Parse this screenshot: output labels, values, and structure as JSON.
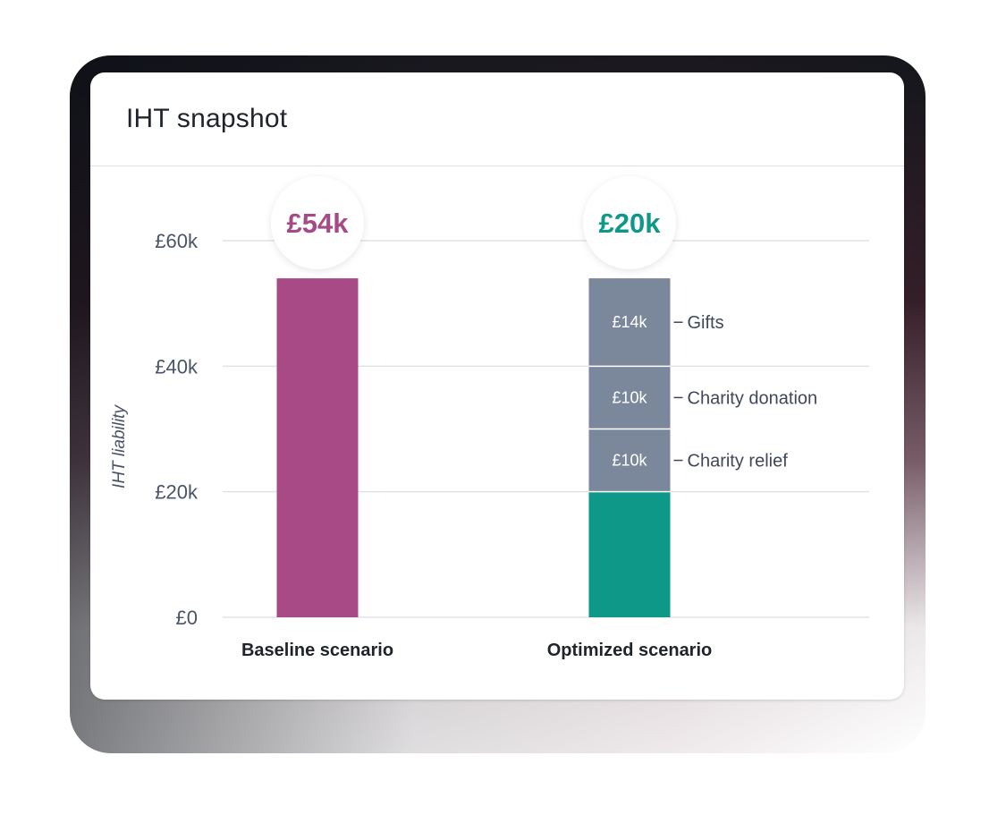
{
  "card": {
    "title": "IHT snapshot"
  },
  "chart_data": {
    "type": "bar",
    "stacked": true,
    "ylabel": "IHT liability",
    "ylim": [
      0,
      60
    ],
    "yticks": [
      0,
      20,
      40,
      60
    ],
    "ytick_labels": [
      "£0",
      "£20k",
      "£40k",
      "£60k"
    ],
    "grid": true,
    "categories": [
      "Baseline scenario",
      "Optimized scenario"
    ],
    "totals": [
      {
        "label": "£54k",
        "color": "#a64a85"
      },
      {
        "label": "£20k",
        "color": "#0e9888"
      }
    ],
    "bars": [
      {
        "category": "Baseline scenario",
        "segments": [
          {
            "value": 54,
            "color": "#a84a86",
            "value_label": "",
            "name": ""
          }
        ]
      },
      {
        "category": "Optimized scenario",
        "segments": [
          {
            "value": 20,
            "color": "#0e9888",
            "value_label": "",
            "name": ""
          },
          {
            "value": 10,
            "color": "#7b889c",
            "value_label": "£10k",
            "name": "Charity relief"
          },
          {
            "value": 10,
            "color": "#7b889c",
            "value_label": "£10k",
            "name": "Charity donation"
          },
          {
            "value": 14,
            "color": "#7b889c",
            "value_label": "£14k",
            "name": "Gifts"
          }
        ]
      }
    ]
  }
}
